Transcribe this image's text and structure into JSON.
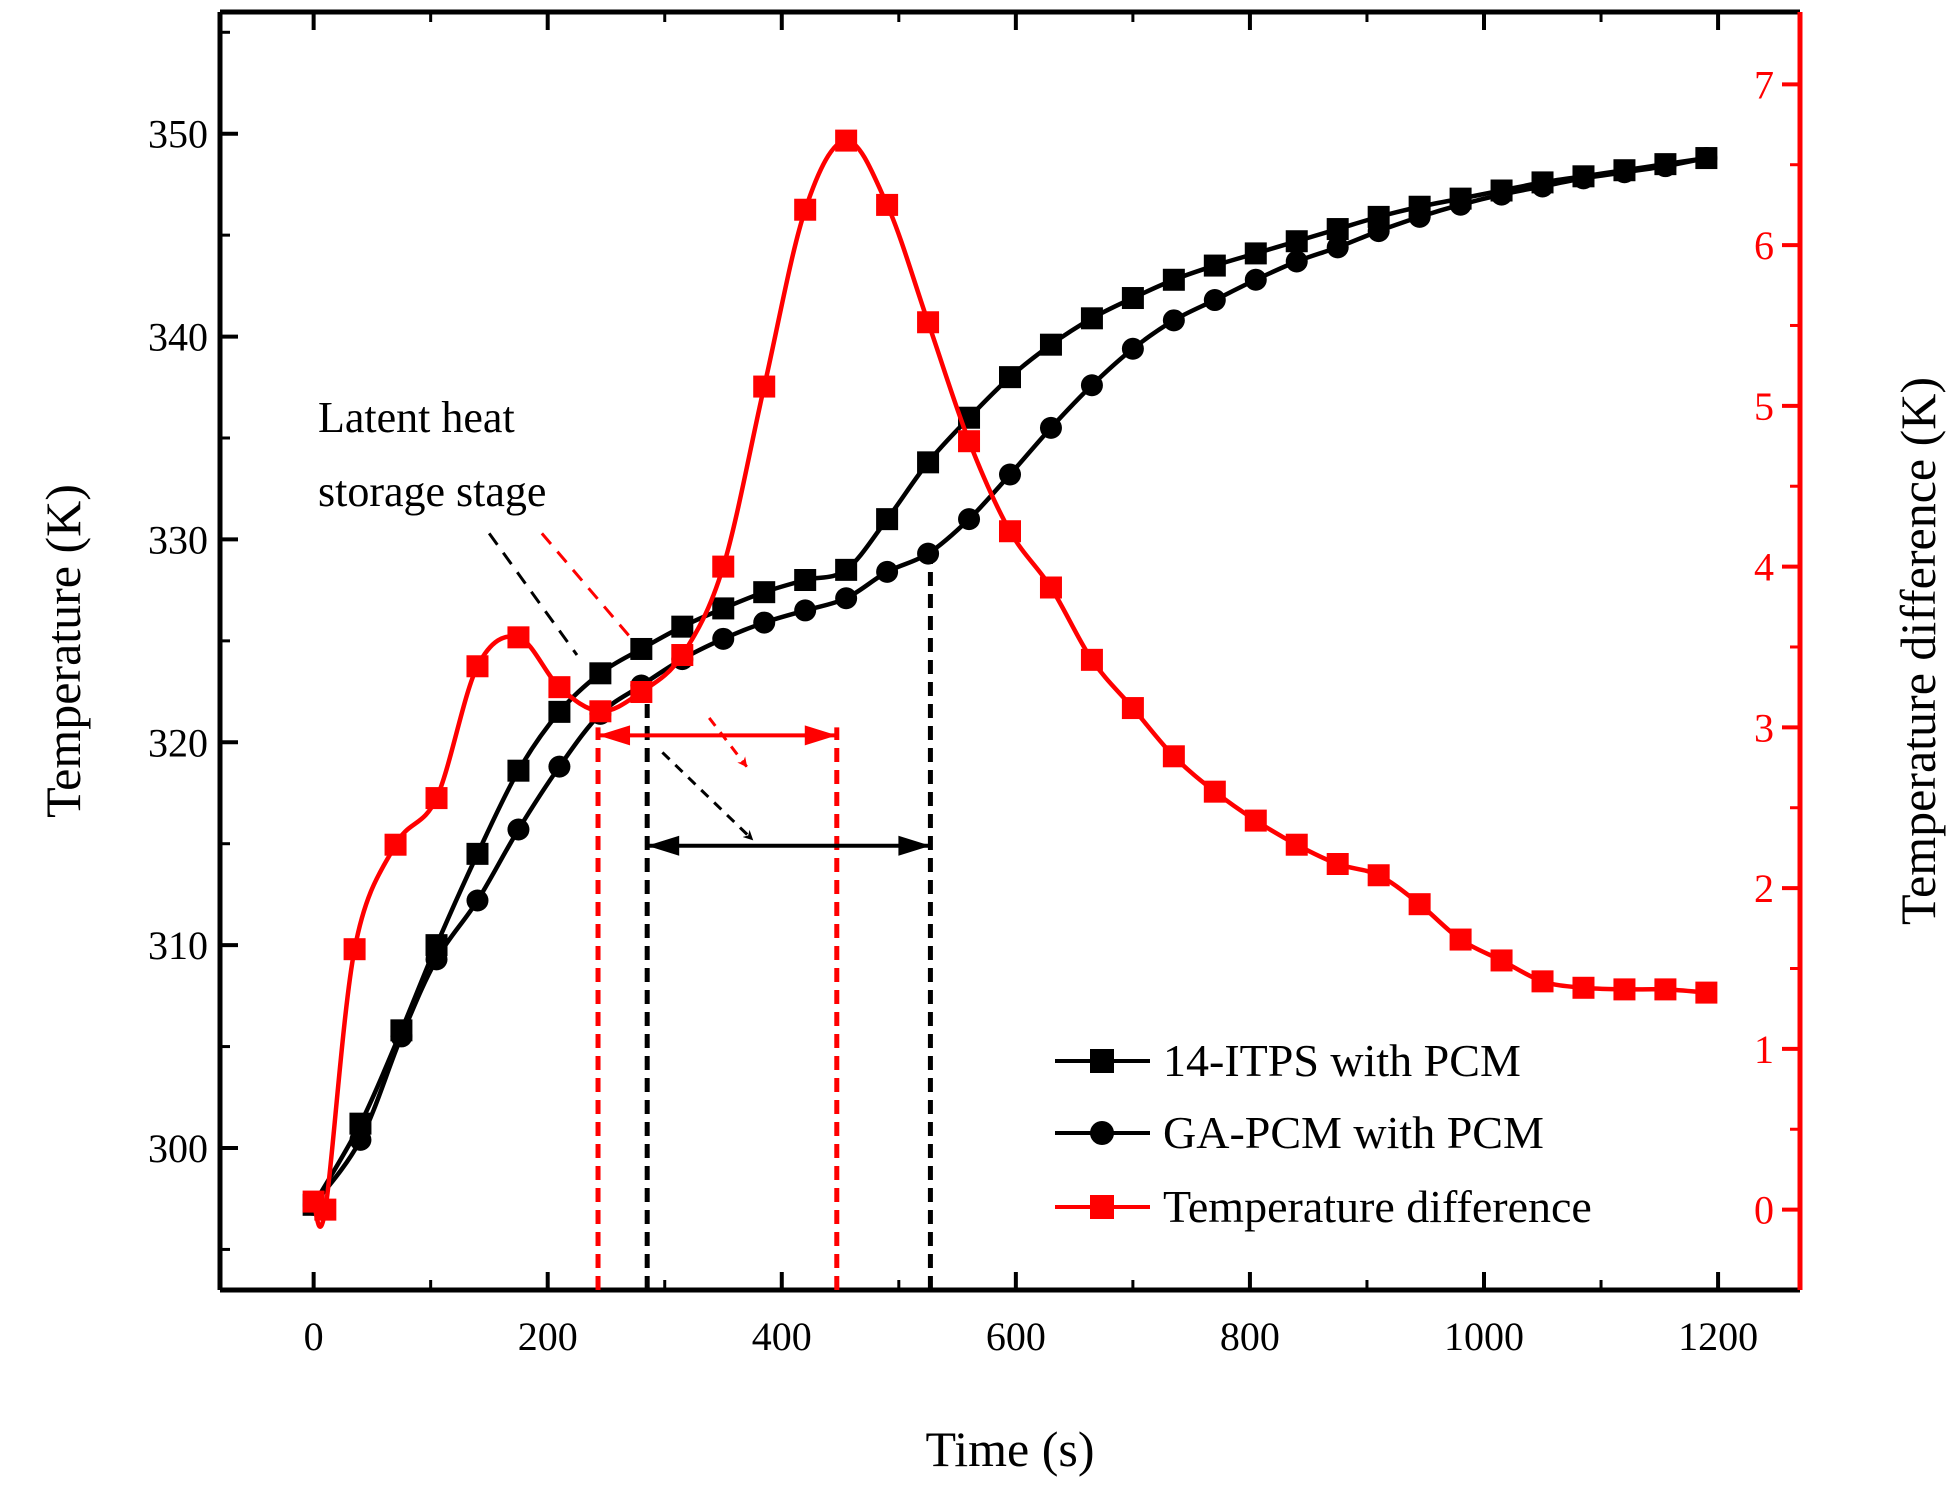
{
  "chart_data": {
    "type": "line",
    "title": "",
    "xlabel": "Time (s)",
    "ylabel": "Temperature (K)",
    "y2label": "Temperature difference (K)",
    "xlim": [
      -80,
      1270
    ],
    "ylim": [
      293,
      356
    ],
    "y2lim": [
      -0.5,
      7.45
    ],
    "xticks": [
      0,
      200,
      400,
      600,
      800,
      1000,
      1200
    ],
    "yticks": [
      300,
      310,
      320,
      330,
      340,
      350
    ],
    "y2ticks": [
      0,
      1,
      2,
      3,
      4,
      5,
      6,
      7
    ],
    "legend_position": "bottom-right",
    "colors": {
      "axis_left": "#000000",
      "axis_right": "#ff0000"
    },
    "series": [
      {
        "name": "14-ITPS with PCM",
        "axis": "left",
        "marker": "square",
        "color": "#000000",
        "x": [
          0,
          40,
          75,
          105,
          140,
          175,
          210,
          245,
          280,
          315,
          350,
          385,
          420,
          455,
          490,
          525,
          560,
          595,
          630,
          665,
          700,
          735,
          770,
          805,
          840,
          875,
          910,
          945,
          980,
          1015,
          1050,
          1085,
          1120,
          1155,
          1190
        ],
        "values": [
          297.2,
          301.2,
          305.8,
          310.0,
          314.5,
          318.6,
          321.5,
          323.4,
          324.6,
          325.7,
          326.6,
          327.4,
          328.0,
          328.5,
          331.0,
          333.8,
          336.0,
          338.0,
          339.6,
          340.9,
          341.9,
          342.8,
          343.5,
          344.1,
          344.7,
          345.3,
          345.9,
          346.4,
          346.8,
          347.2,
          347.6,
          347.9,
          348.2,
          348.5,
          348.8
        ]
      },
      {
        "name": "GA-PCM with PCM",
        "axis": "left",
        "marker": "circle",
        "color": "#000000",
        "x": [
          0,
          40,
          75,
          105,
          140,
          175,
          210,
          245,
          280,
          315,
          350,
          385,
          420,
          455,
          490,
          525,
          560,
          595,
          630,
          665,
          700,
          735,
          770,
          805,
          840,
          875,
          910,
          945,
          980,
          1015,
          1050,
          1085,
          1120,
          1155,
          1190
        ],
        "values": [
          297.2,
          300.4,
          305.5,
          309.3,
          312.2,
          315.7,
          318.8,
          321.4,
          322.8,
          324.1,
          325.1,
          325.9,
          326.5,
          327.1,
          328.4,
          329.3,
          331.0,
          333.2,
          335.5,
          337.6,
          339.4,
          340.8,
          341.8,
          342.8,
          343.7,
          344.4,
          345.2,
          345.9,
          346.5,
          347.0,
          347.4,
          347.8,
          348.1,
          348.4,
          348.8
        ]
      },
      {
        "name": "Temperature difference",
        "axis": "right",
        "marker": "square",
        "color": "#ff0000",
        "x": [
          0,
          10,
          35,
          70,
          105,
          140,
          175,
          210,
          245,
          280,
          315,
          350,
          385,
          420,
          455,
          490,
          525,
          560,
          595,
          630,
          665,
          700,
          735,
          770,
          805,
          840,
          875,
          910,
          945,
          980,
          1015,
          1050,
          1085,
          1120,
          1155,
          1190
        ],
        "values": [
          0.05,
          0.0,
          1.62,
          2.27,
          2.56,
          3.38,
          3.56,
          3.25,
          3.1,
          3.22,
          3.45,
          4.0,
          5.12,
          6.22,
          6.65,
          6.25,
          5.52,
          4.78,
          4.22,
          3.87,
          3.42,
          3.12,
          2.82,
          2.6,
          2.42,
          2.27,
          2.15,
          2.08,
          1.9,
          1.68,
          1.55,
          1.42,
          1.38,
          1.37,
          1.37,
          1.35
        ]
      }
    ],
    "annotations": {
      "text_line1": "Latent heat",
      "text_line2": "storage stage",
      "red_vlines_x": [
        243,
        447
      ],
      "black_vlines_x": [
        285,
        527
      ],
      "red_span": [
        243,
        447
      ],
      "black_span": [
        285,
        527
      ],
      "red_span_y": 2.95,
      "black_span_y": 314.9
    }
  }
}
